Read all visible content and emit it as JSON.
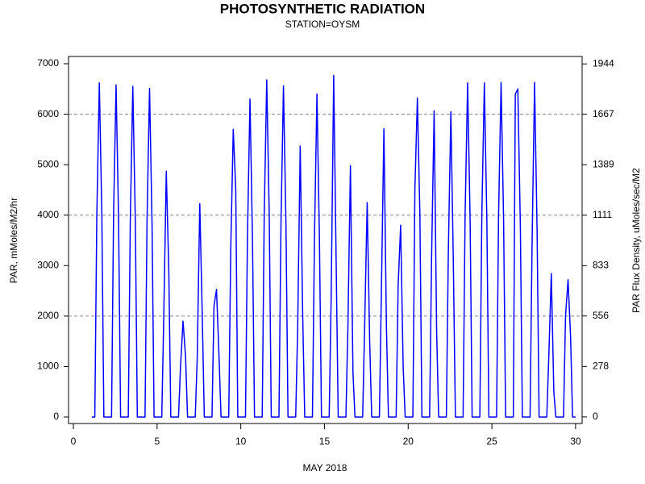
{
  "chart_data": {
    "type": "line",
    "title": "PHOTOSYNTHETIC RADIATION",
    "subtitle": "STATION=OYSM",
    "x_label": "MAY 2018",
    "y_label": "PAR, mMoles/M2/hr",
    "y2_label": "PAR Flux Density, uMoles/sec/M2",
    "xlim": [
      -0.29,
      30.39
    ],
    "ylim": [
      -128,
      7144
    ],
    "y2lim": [
      -36,
      1985
    ],
    "xticks": [
      0,
      5,
      10,
      15,
      20,
      25,
      30
    ],
    "yticks": [
      0,
      1000,
      2000,
      3000,
      4000,
      5000,
      6000,
      7000
    ],
    "y2ticks": [
      0,
      278,
      556,
      833,
      1111,
      1389,
      1667,
      1944
    ],
    "grid": true,
    "x": [
      1.1,
      1.28,
      1.4,
      1.55,
      1.7,
      1.82,
      2.28,
      2.4,
      2.55,
      2.7,
      2.82,
      3.28,
      3.4,
      3.55,
      3.7,
      3.82,
      4.28,
      4.4,
      4.55,
      4.7,
      4.82,
      5.28,
      5.4,
      5.55,
      5.7,
      5.82,
      6.28,
      6.4,
      6.55,
      6.7,
      6.82,
      7.28,
      7.4,
      7.55,
      7.7,
      7.82,
      8.28,
      8.4,
      8.55,
      8.7,
      8.82,
      9.28,
      9.4,
      9.55,
      9.7,
      9.82,
      10.28,
      10.4,
      10.55,
      10.7,
      10.82,
      11.28,
      11.4,
      11.55,
      11.7,
      11.82,
      12.28,
      12.4,
      12.55,
      12.7,
      12.82,
      13.28,
      13.4,
      13.55,
      13.7,
      13.82,
      14.28,
      14.4,
      14.55,
      14.7,
      14.82,
      15.28,
      15.4,
      15.55,
      15.7,
      15.82,
      16.28,
      16.4,
      16.55,
      16.7,
      16.82,
      17.28,
      17.4,
      17.55,
      17.7,
      17.82,
      18.28,
      18.4,
      18.55,
      18.7,
      18.82,
      19.28,
      19.4,
      19.55,
      19.7,
      19.82,
      20.28,
      20.4,
      20.55,
      20.7,
      20.82,
      21.28,
      21.4,
      21.55,
      21.7,
      21.82,
      22.28,
      22.4,
      22.55,
      22.7,
      22.82,
      23.28,
      23.4,
      23.55,
      23.7,
      23.82,
      24.28,
      24.4,
      24.55,
      24.7,
      24.82,
      25.28,
      25.4,
      25.55,
      25.7,
      25.82,
      26.28,
      26.4,
      26.55,
      26.7,
      26.82,
      27.28,
      27.4,
      27.55,
      27.7,
      27.82,
      28.28,
      28.4,
      28.55,
      28.7,
      28.82,
      29.28,
      29.4,
      29.55,
      29.7,
      29.82,
      30.0
    ],
    "series": [
      {
        "color": "#0000ff",
        "values": [
          0,
          0,
          4000,
          6620,
          4000,
          0,
          0,
          4000,
          6580,
          3900,
          0,
          0,
          3900,
          6550,
          3900,
          0,
          0,
          3900,
          6510,
          3800,
          0,
          0,
          2000,
          4870,
          2900,
          0,
          0,
          1000,
          1900,
          1200,
          0,
          0,
          1200,
          4230,
          2000,
          0,
          0,
          2200,
          2530,
          1200,
          0,
          0,
          3300,
          5700,
          4500,
          0,
          0,
          3600,
          6300,
          3500,
          0,
          0,
          4000,
          6680,
          4000,
          0,
          0,
          3800,
          6560,
          3800,
          0,
          0,
          1800,
          5370,
          2000,
          0,
          0,
          3500,
          6400,
          3500,
          0,
          0,
          2400,
          6770,
          3000,
          0,
          0,
          1800,
          4980,
          900,
          0,
          0,
          1800,
          4250,
          1500,
          0,
          0,
          2500,
          5710,
          1800,
          0,
          0,
          2600,
          3800,
          1000,
          0,
          0,
          4500,
          6320,
          4000,
          0,
          0,
          3200,
          6070,
          1700,
          0,
          0,
          3300,
          6050,
          3000,
          0,
          0,
          4000,
          6620,
          3900,
          0,
          0,
          4000,
          6620,
          3900,
          0,
          0,
          4000,
          6630,
          3900,
          0,
          0,
          6400,
          6500,
          3800,
          0,
          0,
          3400,
          6630,
          3700,
          0,
          0,
          1200,
          2840,
          500,
          0,
          0,
          2000,
          2720,
          1600,
          0,
          0
        ]
      }
    ]
  }
}
